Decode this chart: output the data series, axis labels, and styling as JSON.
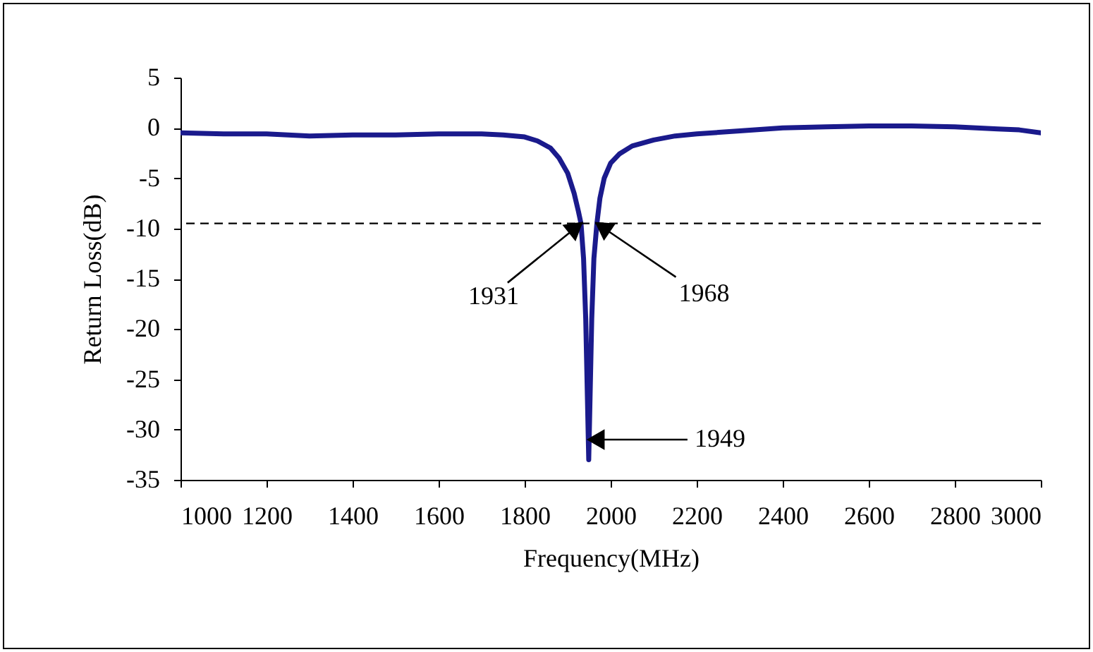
{
  "chart_data": {
    "type": "line",
    "xlabel": "Frequency(MHz)",
    "ylabel": "Return Loss(dB)",
    "x": [
      1000,
      1100,
      1200,
      1300,
      1400,
      1500,
      1600,
      1700,
      1750,
      1800,
      1830,
      1860,
      1880,
      1900,
      1915,
      1925,
      1931,
      1937,
      1942,
      1946,
      1949,
      1952,
      1956,
      1961,
      1968,
      1975,
      1985,
      2000,
      2020,
      2050,
      2100,
      2150,
      2200,
      2300,
      2400,
      2500,
      2600,
      2700,
      2800,
      2900,
      2950,
      3000
    ],
    "series": [
      {
        "color": "#1a1a8c",
        "values": [
          -0.5,
          -0.6,
          -0.6,
          -0.8,
          -0.7,
          -0.7,
          -0.6,
          -0.6,
          -0.7,
          -0.9,
          -1.3,
          -2,
          -3,
          -4.5,
          -6.5,
          -8.3,
          -9.5,
          -13,
          -19,
          -27,
          -33,
          -27,
          -19,
          -13,
          -9.5,
          -7,
          -5,
          -3.5,
          -2.6,
          -1.8,
          -1.2,
          -0.8,
          -0.6,
          -0.3,
          0,
          0.1,
          0.2,
          0.2,
          0.1,
          -0.1,
          -0.2,
          -0.5
        ]
      }
    ],
    "xlim": [
      1000,
      3000
    ],
    "xticks": [
      1000,
      1200,
      1400,
      1600,
      1800,
      2000,
      2200,
      2400,
      2600,
      2800,
      3000
    ],
    "ylim": [
      -35,
      5
    ],
    "yticks": [
      -35,
      -30,
      -25,
      -20,
      -15,
      -10,
      -5,
      0,
      5
    ],
    "grid": false,
    "marker": "none",
    "line_style": "solid",
    "ref_lines": [
      {
        "axis": "y",
        "value": -9.5,
        "line_style": "dashed",
        "color": "#000000"
      }
    ],
    "annotations": [
      {
        "text": "1931",
        "x": 1931,
        "y": -9.5
      },
      {
        "text": "1968",
        "x": 1968,
        "y": -9.5
      },
      {
        "text": "1949",
        "x": 1949,
        "y": -31
      }
    ]
  }
}
